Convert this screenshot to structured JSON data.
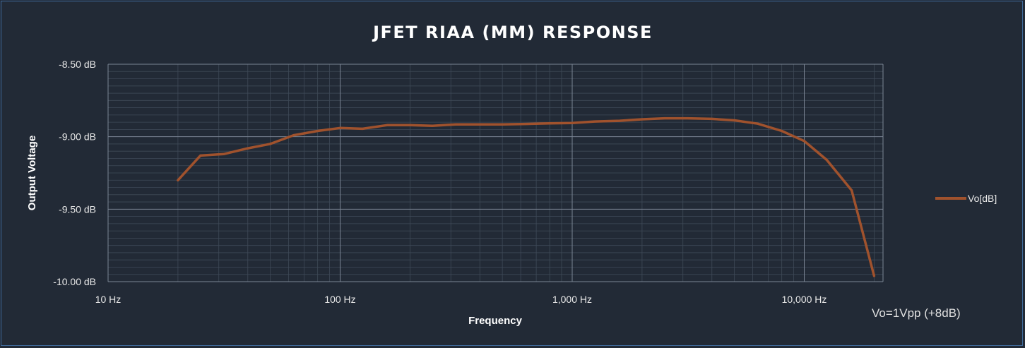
{
  "chart_data": {
    "type": "line",
    "title": "JFET RIAA (MM) RESPONSE",
    "xlabel": "Frequency",
    "ylabel": "Output Voltage",
    "x_scale": "log",
    "xlim": [
      10,
      20000
    ],
    "ylim": [
      -10.0,
      -8.5
    ],
    "x_ticks": [
      10,
      100,
      1000,
      10000
    ],
    "x_tick_labels": [
      "10 Hz",
      "100 Hz",
      "1,000 Hz",
      "10,000 Hz"
    ],
    "y_ticks": [
      -8.5,
      -9.0,
      -9.5,
      -10.0
    ],
    "y_tick_labels": [
      "-8.50 dB",
      "-9.00 dB",
      "-9.50 dB",
      "-10.00 dB"
    ],
    "grid": true,
    "legend_position": "right",
    "annotation": "Vo=1Vpp (+8dB)",
    "series": [
      {
        "name": "Vo[dB]",
        "color": "#a0522d",
        "x": [
          20,
          25,
          31.5,
          40,
          50,
          63,
          80,
          100,
          125,
          160,
          200,
          250,
          315,
          400,
          500,
          630,
          800,
          1000,
          1250,
          1600,
          2000,
          2500,
          3150,
          4000,
          5000,
          6300,
          8000,
          10000,
          12500,
          16000,
          20000
        ],
        "values": [
          -9.3,
          -9.13,
          -9.12,
          -9.08,
          -9.05,
          -8.99,
          -8.96,
          -8.94,
          -8.945,
          -8.92,
          -8.92,
          -8.925,
          -8.915,
          -8.915,
          -8.915,
          -8.912,
          -8.908,
          -8.905,
          -8.895,
          -8.89,
          -8.88,
          -8.873,
          -8.873,
          -8.877,
          -8.887,
          -8.91,
          -8.96,
          -9.03,
          -9.16,
          -9.37,
          -9.96
        ]
      }
    ]
  }
}
